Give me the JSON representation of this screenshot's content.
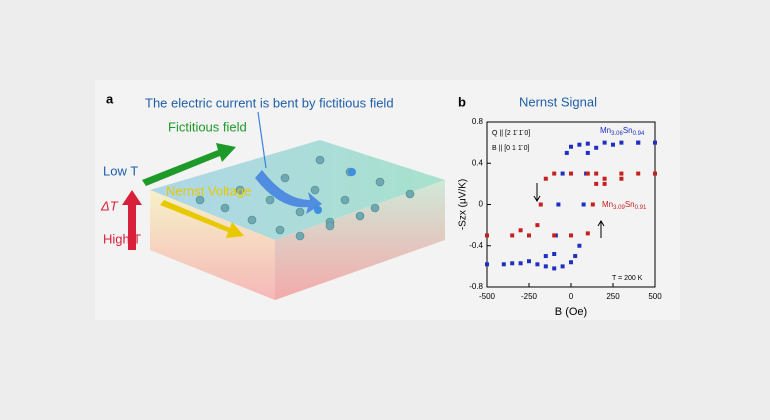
{
  "panel_a": {
    "label": "a",
    "caption": "The electric current is bent by fictitious field",
    "fictitious": "Fictitious field",
    "low": "Low T",
    "delta": "ΔT",
    "nernst": "Nernst Voltage",
    "high": "High T"
  },
  "chart_data": {
    "type": "scatter",
    "panel_label": "b",
    "title": "Nernst Signal",
    "x_label": "B (Oe)",
    "y_label": "-Szx (μV/K)",
    "annotations": [
      "Q || [2 1̄ 1̄ 0]",
      "B || [0 1 1̄ 0]",
      "T = 200 K"
    ],
    "xlim": [
      -500,
      500
    ],
    "xticks": [
      -500,
      -250,
      0,
      250,
      500
    ],
    "ylim": [
      -0.8,
      0.8
    ],
    "yticks": [
      -0.8,
      -0.4,
      0,
      0.4,
      0.8
    ],
    "series": [
      {
        "name": "Mn3.06Sn0.94",
        "color": "#1f2fc0",
        "x": [
          500,
          400,
          300,
          200,
          100,
          50,
          0,
          -25,
          -50,
          -75,
          -90,
          -100,
          -150,
          -250,
          -350,
          -500,
          -400,
          -300,
          -200,
          -150,
          -100,
          -50,
          0,
          25,
          50,
          75,
          90,
          100,
          150,
          250,
          400
        ],
        "values": [
          0.6,
          0.6,
          0.6,
          0.6,
          0.59,
          0.58,
          0.56,
          0.5,
          0.3,
          0.0,
          -0.3,
          -0.48,
          -0.5,
          -0.55,
          -0.57,
          -0.58,
          -0.58,
          -0.57,
          -0.58,
          -0.6,
          -0.62,
          -0.6,
          -0.56,
          -0.5,
          -0.4,
          0.0,
          0.3,
          0.5,
          0.55,
          0.58,
          0.6
        ]
      },
      {
        "name": "Mn3.09Sn0.91",
        "color": "#c81e1e",
        "x": [
          500,
          400,
          300,
          200,
          150,
          100,
          0,
          -100,
          -150,
          -180,
          -200,
          -250,
          -350,
          -500,
          -300,
          -100,
          0,
          100,
          130,
          150,
          200,
          300
        ],
        "values": [
          0.3,
          0.3,
          0.25,
          0.2,
          0.3,
          0.3,
          0.3,
          0.3,
          0.25,
          0.0,
          -0.2,
          -0.3,
          -0.3,
          -0.3,
          -0.25,
          -0.3,
          -0.3,
          -0.28,
          0.0,
          0.2,
          0.25,
          0.3
        ]
      }
    ]
  }
}
